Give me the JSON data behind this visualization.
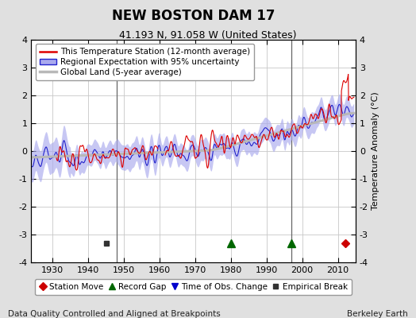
{
  "title": "NEW BOSTON DAM 17",
  "subtitle": "41.193 N, 91.058 W (United States)",
  "ylabel": "Temperature Anomaly (°C)",
  "xlabel_left": "Data Quality Controlled and Aligned at Breakpoints",
  "xlabel_right": "Berkeley Earth",
  "xlim": [
    1924,
    2015
  ],
  "ylim": [
    -4,
    4
  ],
  "yticks": [
    -4,
    -3,
    -2,
    -1,
    0,
    1,
    2,
    3,
    4
  ],
  "xticks": [
    1930,
    1940,
    1950,
    1960,
    1970,
    1980,
    1990,
    2000,
    2010
  ],
  "background_color": "#e0e0e0",
  "plot_bg_color": "#ffffff",
  "grid_color": "#c8c8c8",
  "red_line_color": "#dd0000",
  "blue_line_color": "#2222cc",
  "blue_fill_color": "#aaaaee",
  "gray_line_color": "#b8b8b8",
  "vertical_line_color": "#666666",
  "vertical_lines": [
    1948,
    1997
  ],
  "event_y": -3.3,
  "events": [
    {
      "year": 1945,
      "marker": "s",
      "color": "#333333",
      "size": 5
    },
    {
      "year": 1980,
      "marker": "^",
      "color": "#006600",
      "size": 7
    },
    {
      "year": 1997,
      "marker": "^",
      "color": "#006600",
      "size": 7
    },
    {
      "year": 2012,
      "marker": "D",
      "color": "#cc0000",
      "size": 5
    }
  ],
  "legend_entries": [
    {
      "label": "This Temperature Station (12-month average)",
      "color": "#dd0000",
      "lw": 1.8
    },
    {
      "label": "Regional Expectation with 95% uncertainty",
      "color": "#2222cc",
      "fill_color": "#aaaaee"
    },
    {
      "label": "Global Land (5-year average)",
      "color": "#b8b8b8",
      "lw": 2.5
    }
  ],
  "bottom_legend": [
    {
      "label": "Station Move",
      "marker": "D",
      "color": "#cc0000"
    },
    {
      "label": "Record Gap",
      "marker": "^",
      "color": "#006600"
    },
    {
      "label": "Time of Obs. Change",
      "marker": "v",
      "color": "#0000cc"
    },
    {
      "label": "Empirical Break",
      "marker": "s",
      "color": "#333333"
    }
  ],
  "title_fontsize": 12,
  "subtitle_fontsize": 9,
  "tick_fontsize": 8,
  "ylabel_fontsize": 8,
  "legend_fontsize": 7.5,
  "footer_fontsize": 7.5
}
